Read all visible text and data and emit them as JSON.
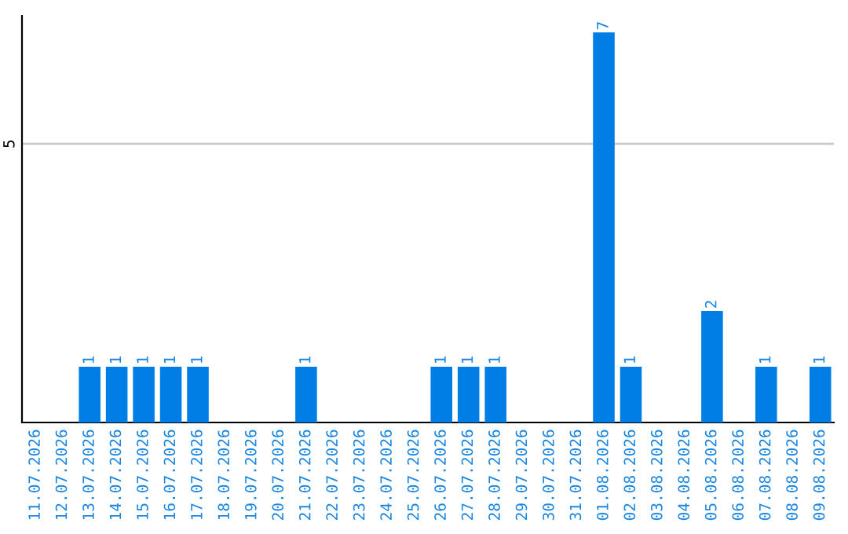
{
  "chart_data": {
    "type": "bar",
    "categories": [
      "11.07.2026",
      "12.07.2026",
      "13.07.2026",
      "14.07.2026",
      "15.07.2026",
      "16.07.2026",
      "17.07.2026",
      "18.07.2026",
      "19.07.2026",
      "20.07.2026",
      "21.07.2026",
      "22.07.2026",
      "23.07.2026",
      "24.07.2026",
      "25.07.2026",
      "26.07.2026",
      "27.07.2026",
      "28.07.2026",
      "29.07.2026",
      "30.07.2026",
      "31.07.2026",
      "01.08.2026",
      "02.08.2026",
      "03.08.2026",
      "04.08.2026",
      "05.08.2026",
      "06.08.2026",
      "07.08.2026",
      "08.08.2026",
      "09.08.2026"
    ],
    "values": [
      0,
      0,
      1,
      1,
      1,
      1,
      1,
      0,
      0,
      0,
      1,
      0,
      0,
      0,
      0,
      1,
      1,
      1,
      0,
      0,
      0,
      7,
      1,
      0,
      0,
      2,
      0,
      1,
      0,
      1
    ],
    "value_labels": [
      null,
      null,
      "1",
      "1",
      "1",
      "1",
      "1",
      null,
      null,
      null,
      "1",
      null,
      null,
      null,
      null,
      "1",
      "1",
      "1",
      null,
      null,
      null,
      "7",
      "1",
      null,
      null,
      "2",
      null,
      "1",
      null,
      "1"
    ],
    "color": "#007ee5",
    "ylim": [
      0,
      7.3
    ],
    "yticks": [
      5
    ],
    "grid": "y",
    "legend": false
  }
}
